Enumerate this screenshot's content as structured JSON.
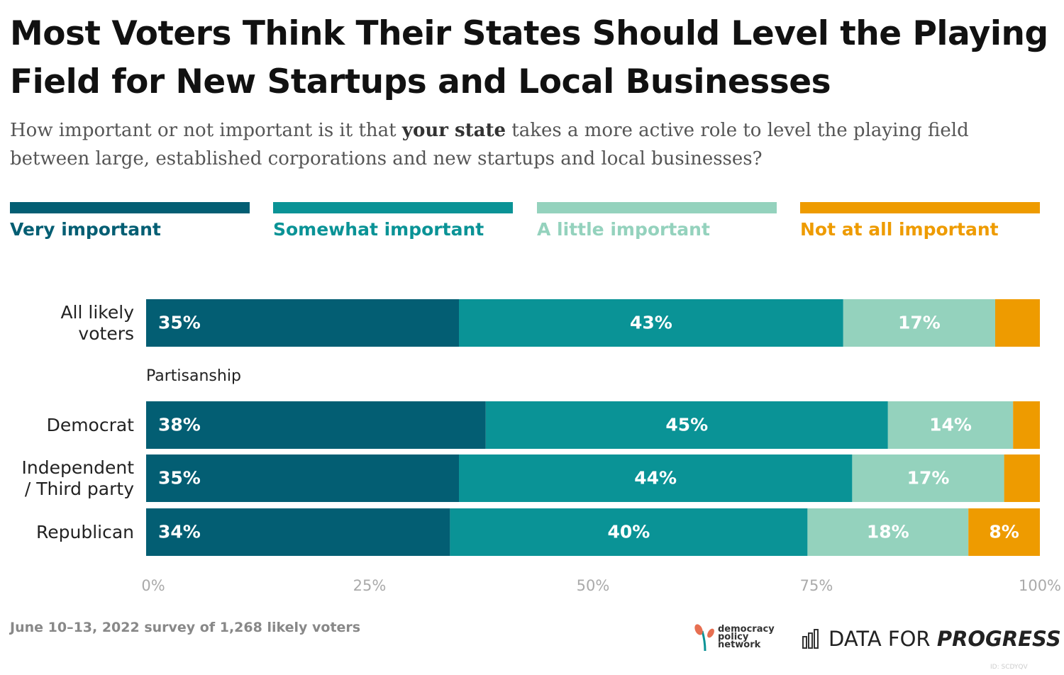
{
  "chart_data": {
    "type": "stacked-bar",
    "title": "Most Voters Think Their States Should Level the Playing Field for New Startups and Local Businesses",
    "subtitle": [
      "How important or not important is it that ",
      "your state",
      " takes a more active role to level the playing field between large, established corporations and new startups and local businesses?"
    ],
    "categories": [
      "All likely\nvoters",
      "Democrat",
      "Independent\n/ Third party",
      "Republican"
    ],
    "group_label": "Partisanship",
    "series": [
      {
        "name": "Very important",
        "color": "#035e73",
        "values": [
          35,
          38,
          35,
          34
        ],
        "value_labels": [
          "35%",
          "38%",
          "35%",
          "34%"
        ]
      },
      {
        "name": "Somewhat important",
        "color": "#0a9396",
        "values": [
          43,
          45,
          44,
          40
        ],
        "value_labels": [
          "43%",
          "45%",
          "44%",
          "40%"
        ]
      },
      {
        "name": "A little important",
        "color": "#94d2bd",
        "values": [
          17,
          14,
          17,
          18
        ],
        "value_labels": [
          "17%",
          "14%",
          "17%",
          "18%"
        ]
      },
      {
        "name": "Not at all important",
        "color": "#ee9b00",
        "values": [
          5,
          3,
          4,
          8
        ],
        "value_labels": [
          null,
          null,
          null,
          "8%"
        ]
      }
    ],
    "xlim": [
      0,
      100
    ],
    "xticks": [
      {
        "value": 0,
        "label": "0%"
      },
      {
        "value": 25,
        "label": "25%"
      },
      {
        "value": 50,
        "label": "50%"
      },
      {
        "value": 75,
        "label": "75%"
      },
      {
        "value": 100,
        "label": "100%"
      }
    ],
    "note": "June 10–13, 2022 survey of 1,268 likely voters",
    "logos": [
      "democracy policy network",
      "DATA FOR",
      "PROGRESS"
    ],
    "id": "ID: SCDYQV"
  }
}
